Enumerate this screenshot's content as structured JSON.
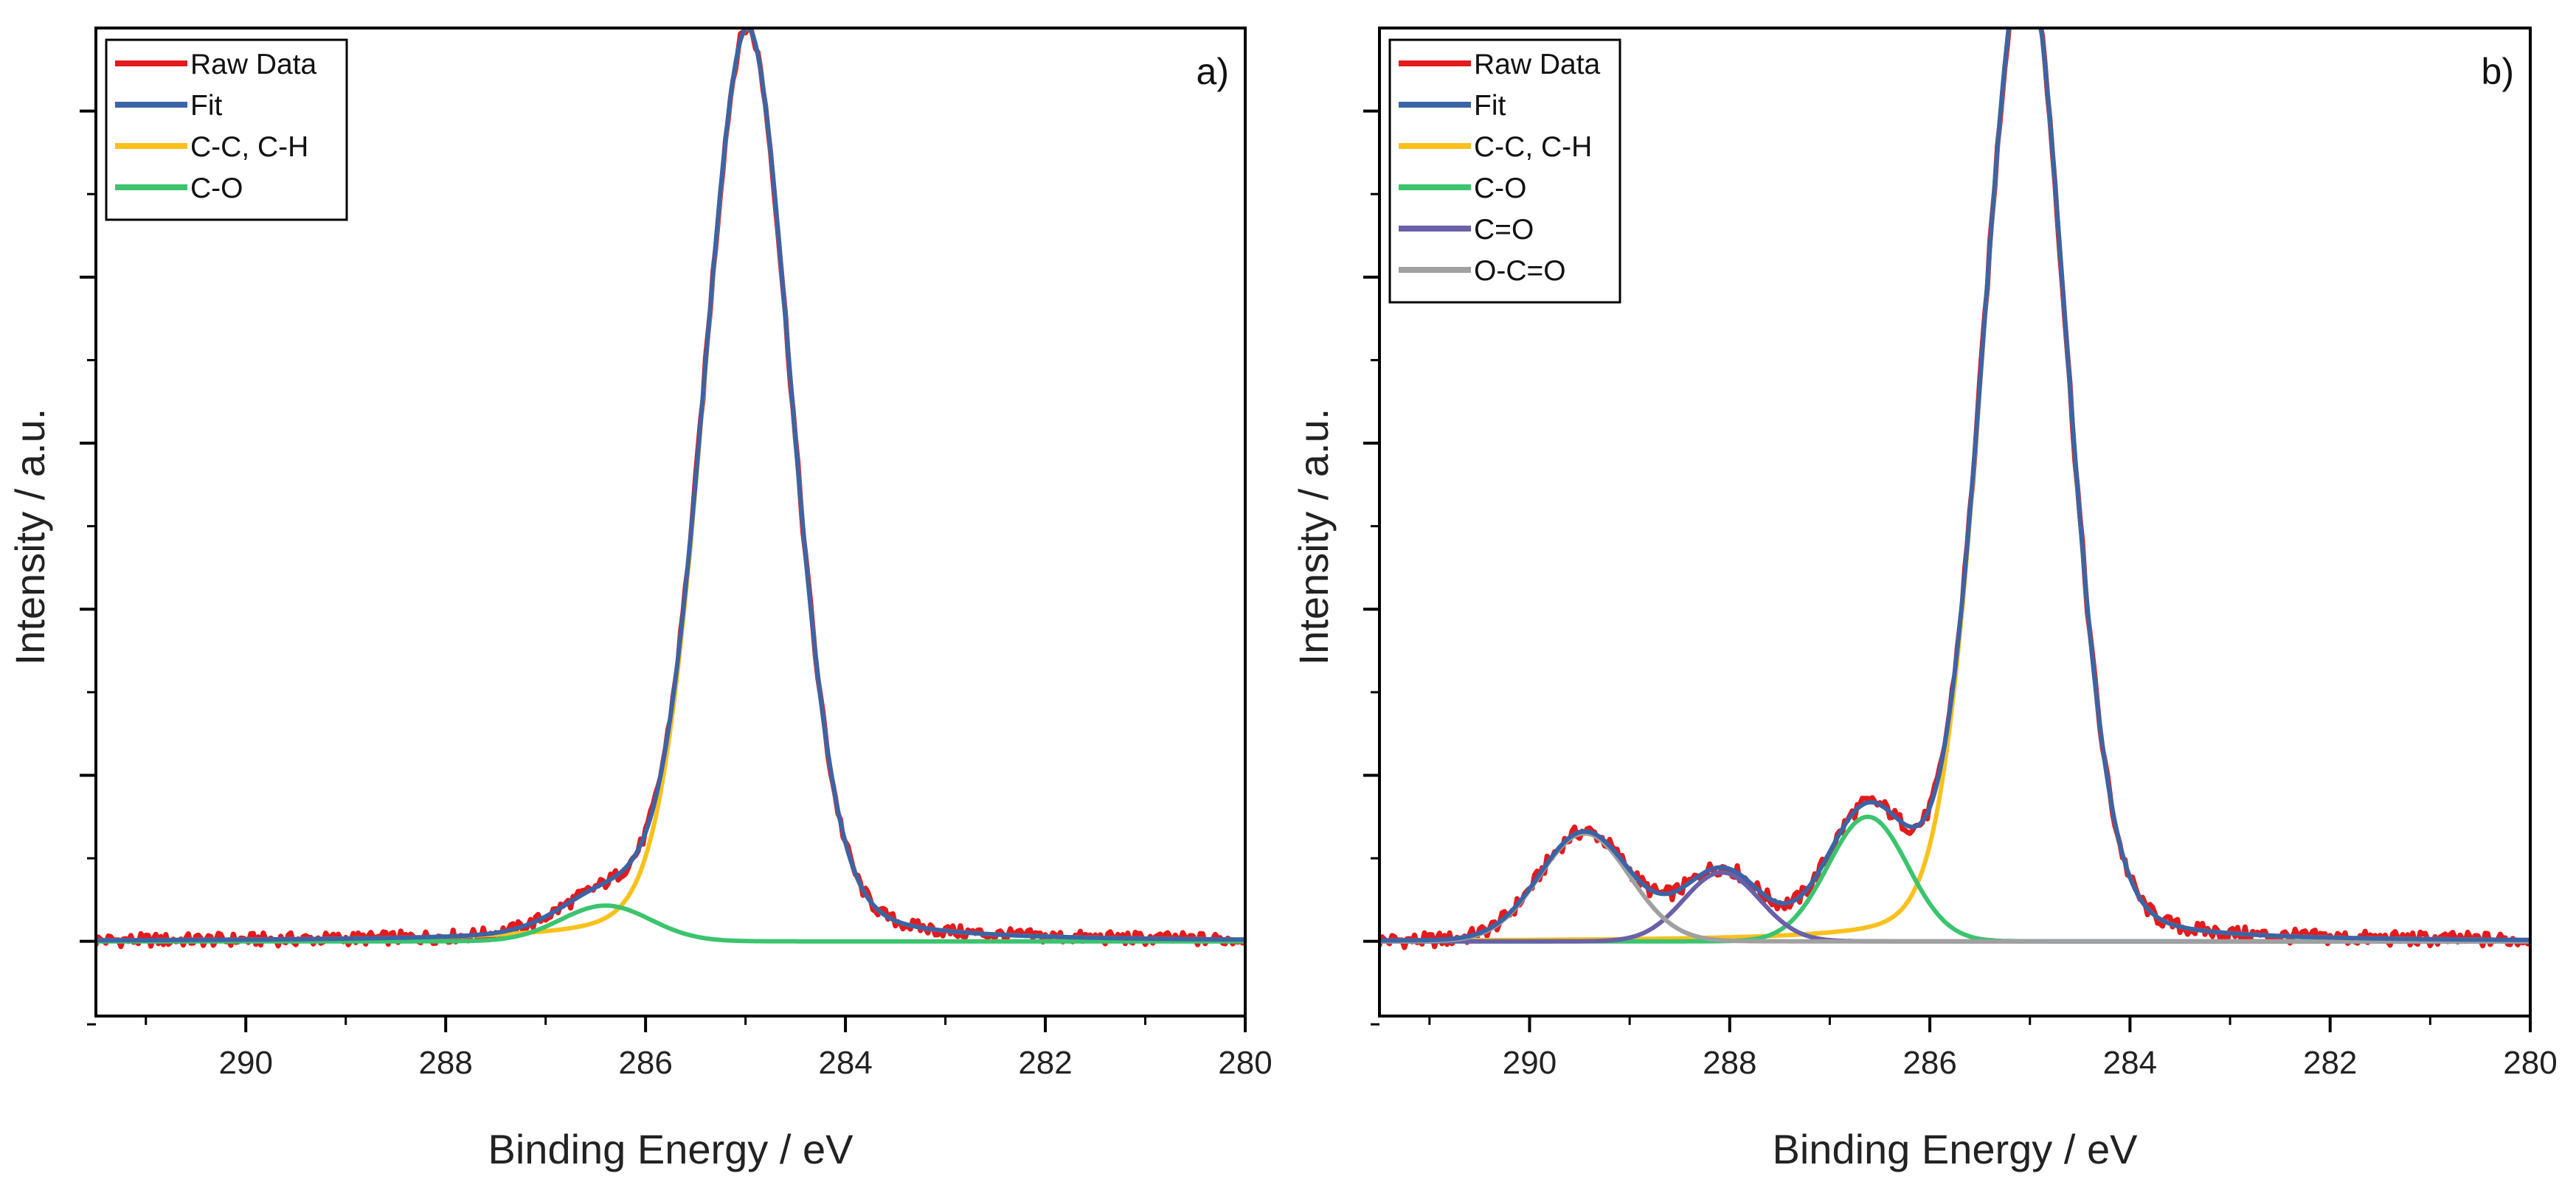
{
  "chart_data": [
    {
      "type": "line",
      "panel_label": "a)",
      "xlabel": "Binding Energy   /  eV",
      "ylabel": "Intensity   /  a.u.",
      "xlim": [
        291.5,
        280
      ],
      "ylim": [
        -0.09,
        1.1
      ],
      "x_reversed": true,
      "x_ticks": [
        290,
        288,
        286,
        284,
        282,
        280
      ],
      "x_tick_labels": [
        "290",
        "288",
        "286",
        "284",
        "282",
        "280"
      ],
      "x_minor_ticks": [
        291,
        289,
        287,
        285,
        283,
        281
      ],
      "y_major_ticks": [
        0,
        0.2,
        0.4,
        0.6,
        0.8,
        1.0
      ],
      "y_minor_ticks": [
        -0.1,
        0.1,
        0.3,
        0.5,
        0.7,
        0.9
      ],
      "y_tick_labels_shown": false,
      "legend": {
        "position": "top-left",
        "entries": [
          {
            "label": "Raw Data",
            "color": "#e41a1c"
          },
          {
            "label": "Fit",
            "color": "#3b64a6"
          },
          {
            "label": "C-C, C-H",
            "color": "#f9c11c"
          },
          {
            "label": "C-O",
            "color": "#3bc46e"
          }
        ]
      },
      "series": [
        {
          "name": "C-C, C-H",
          "color": "#f9c11c",
          "components": [
            {
              "center": 284.98,
              "amplitude": 1.1,
              "sigma": 0.44,
              "eta": 0.18
            }
          ]
        },
        {
          "name": "C-O",
          "color": "#3bc46e",
          "components": [
            {
              "center": 286.4,
              "amplitude": 0.043,
              "sigma": 0.45,
              "eta": 0.0
            }
          ]
        },
        {
          "name": "Fit",
          "color": "#3b64a6",
          "sum_of": [
            "C-C, C-H",
            "C-O"
          ]
        },
        {
          "name": "Raw Data",
          "color": "#e41a1c",
          "sum_of": [
            "C-C, C-H",
            "C-O"
          ],
          "noise": 0.008
        }
      ]
    },
    {
      "type": "line",
      "panel_label": "b)",
      "xlabel": "Binding Energy   /  eV",
      "ylabel": "Intensity   /  a.u.",
      "xlim": [
        291.5,
        280
      ],
      "ylim": [
        -0.09,
        1.1
      ],
      "x_reversed": true,
      "x_ticks": [
        290,
        288,
        286,
        284,
        282,
        280
      ],
      "x_tick_labels": [
        "290",
        "288",
        "286",
        "284",
        "282",
        "280"
      ],
      "x_minor_ticks": [
        291,
        289,
        287,
        285,
        283,
        281
      ],
      "y_major_ticks": [
        0,
        0.2,
        0.4,
        0.6,
        0.8,
        1.0
      ],
      "y_minor_ticks": [
        -0.1,
        0.1,
        0.3,
        0.5,
        0.7,
        0.9
      ],
      "y_tick_labels_shown": false,
      "legend": {
        "position": "top-left",
        "entries": [
          {
            "label": "Raw Data",
            "color": "#e41a1c"
          },
          {
            "label": "Fit",
            "color": "#3b64a6"
          },
          {
            "label": "C-C, C-H",
            "color": "#f9c11c"
          },
          {
            "label": "C-O",
            "color": "#3bc46e"
          },
          {
            "label": "C=O",
            "color": "#6a60a9"
          },
          {
            "label": "O-C=O",
            "color": "#a0a0a0"
          }
        ]
      },
      "series": [
        {
          "name": "C-C, C-H",
          "color": "#f9c11c",
          "components": [
            {
              "center": 285.05,
              "amplitude": 1.19,
              "sigma": 0.42,
              "eta": 0.15
            }
          ]
        },
        {
          "name": "C-O",
          "color": "#3bc46e",
          "components": [
            {
              "center": 286.62,
              "amplitude": 0.15,
              "sigma": 0.4,
              "eta": 0.0
            }
          ]
        },
        {
          "name": "C=O",
          "color": "#6a60a9",
          "components": [
            {
              "center": 288.08,
              "amplitude": 0.083,
              "sigma": 0.38,
              "eta": 0.0
            }
          ]
        },
        {
          "name": "O-C=O",
          "color": "#a0a0a0",
          "components": [
            {
              "center": 289.45,
              "amplitude": 0.13,
              "sigma": 0.45,
              "eta": 0.0
            }
          ]
        },
        {
          "name": "Fit",
          "color": "#3b64a6",
          "sum_of": [
            "C-C, C-H",
            "C-O",
            "C=O",
            "O-C=O"
          ]
        },
        {
          "name": "Raw Data",
          "color": "#e41a1c",
          "sum_of": [
            "C-C, C-H",
            "C-O",
            "C=O",
            "O-C=O"
          ],
          "noise": 0.009
        }
      ]
    }
  ]
}
